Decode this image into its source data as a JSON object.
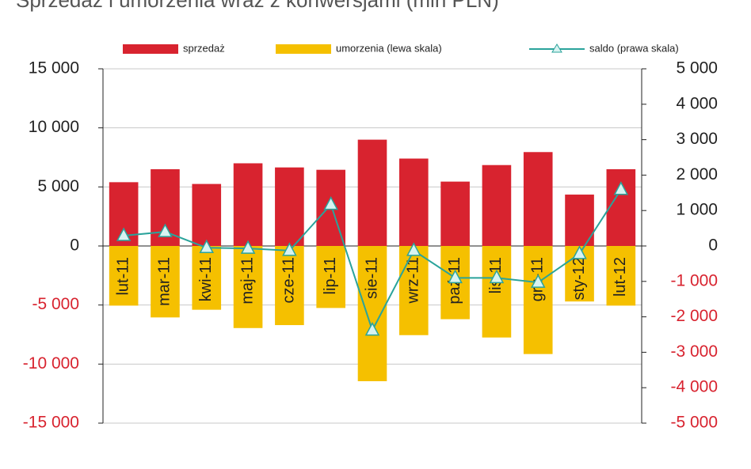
{
  "chart_data": {
    "type": "bar-line",
    "title": "Sprzedaż i umorzenia wraz z konwersjami (mln PLN)",
    "categories": [
      "lut-11",
      "mar-11",
      "kwi-11",
      "maj-11",
      "cze-11",
      "lip-11",
      "sie-11",
      "wrz-11",
      "paź-11",
      "lis-11",
      "gru-11",
      "sty-12",
      "lut-12"
    ],
    "series": [
      {
        "name": "sprzedaż",
        "color": "#d8232f",
        "kind": "bar",
        "values": [
          5400,
          6500,
          5250,
          7000,
          6650,
          6450,
          9000,
          7400,
          5450,
          6850,
          7950,
          4350,
          6500
        ]
      },
      {
        "name": "umorzenia (lewa skala)",
        "color": "#f5c000",
        "kind": "bar",
        "values": [
          -5050,
          -6050,
          -5400,
          -6950,
          -6700,
          -5250,
          -11450,
          -7550,
          -6200,
          -7750,
          -9150,
          -4700,
          -5050
        ]
      },
      {
        "name": "saldo (prawa skala)",
        "color": "#2aa39b",
        "kind": "line",
        "axis": "y2",
        "values": [
          290,
          400,
          -50,
          -70,
          -130,
          1170,
          -2380,
          -130,
          -900,
          -900,
          -1030,
          -220,
          1590
        ]
      }
    ],
    "ylim": [
      -15000,
      15000
    ],
    "yticks": [
      {
        "value": -15000,
        "label": "-15 000"
      },
      {
        "value": -10000,
        "label": "-10 000"
      },
      {
        "value": -5000,
        "label": "-5 000"
      },
      0,
      {
        "value": 5000,
        "label": "5 000"
      },
      {
        "value": 10000,
        "label": "10 000"
      },
      {
        "value": 15000,
        "label": "15 000"
      }
    ],
    "y2lim": [
      -5000,
      5000
    ],
    "y2ticks": [
      {
        "value": -5000,
        "label": "-5 000"
      },
      {
        "value": -4000,
        "label": "-4 000"
      },
      {
        "value": -3000,
        "label": "-3 000"
      },
      {
        "value": -2000,
        "label": "-2 000"
      },
      {
        "value": -1000,
        "label": "-1 000"
      },
      0,
      {
        "value": 1000,
        "label": "1 000"
      },
      {
        "value": 2000,
        "label": "2 000"
      },
      {
        "value": 3000,
        "label": "3 000"
      },
      {
        "value": 4000,
        "label": "4 000"
      },
      {
        "value": 5000,
        "label": "5 000"
      }
    ],
    "grid": true
  }
}
